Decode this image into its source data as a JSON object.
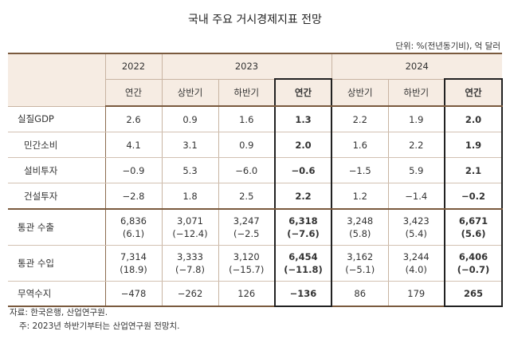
{
  "title": "국내 주요 거시경제지표 전망",
  "unit": "단위: %(전년동기비), 억 달러",
  "years": [
    "2022",
    "2023",
    "2024"
  ],
  "periods": [
    "연간",
    "상반기",
    "하반기",
    "연간",
    "상반기",
    "하반기",
    "연간"
  ],
  "rows": [
    {
      "label": "실질GDP",
      "vals": [
        "2.6",
        "0.9",
        "1.6",
        "1.3",
        "2.2",
        "1.9",
        "2.0"
      ]
    },
    {
      "label": "민간소비",
      "vals": [
        "4.1",
        "3.1",
        "0.9",
        "2.0",
        "1.6",
        "2.2",
        "1.9"
      ]
    },
    {
      "label": "설비투자",
      "vals": [
        "−0.9",
        "5.3",
        "−6.0",
        "−0.6",
        "−1.5",
        "5.9",
        "2.1"
      ]
    },
    {
      "label": "건설투자",
      "vals": [
        "−2.8",
        "1.8",
        "2.5",
        "2.2",
        "1.2",
        "−1.4",
        "−0.2"
      ]
    },
    {
      "label": "통관 수출",
      "vals": [
        "6,836",
        "3,071",
        "3,247",
        "6,318",
        "3,248",
        "3,423",
        "6,671"
      ],
      "subs": [
        "(6.1)",
        "(−12.4)",
        "(−2.5",
        "(−7.6)",
        "(5.8)",
        "(5.4)",
        "(5.6)"
      ]
    },
    {
      "label": "통관 수입",
      "vals": [
        "7,314",
        "3,333",
        "3,120",
        "6,454",
        "3,162",
        "3,244",
        "6,406"
      ],
      "subs": [
        "(18.9)",
        "(−7.8)",
        "(−15.7)",
        "(−11.8)",
        "(−5.1)",
        "(4.0)",
        "(−0.7)"
      ]
    },
    {
      "label": "무역수지",
      "vals": [
        "−478",
        "−262",
        "126",
        "−136",
        "86",
        "179",
        "265"
      ]
    }
  ],
  "notes": [
    "자료: 한국은행, 산업연구원.",
    "주: 2023년 하반기부터는 산업연구원 전망치."
  ]
}
